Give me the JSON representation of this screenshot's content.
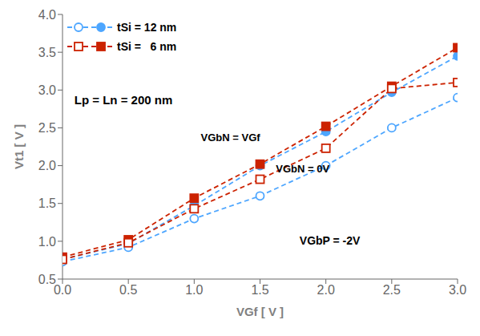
{
  "chart_data": {
    "type": "line",
    "x_label": "VGf [ V ]",
    "y_label": "Vt1 [ V ]",
    "x": [
      0.0,
      0.5,
      1.0,
      1.5,
      2.0,
      2.5,
      3.0
    ],
    "series": [
      {
        "name": "tSi = 12 nm",
        "color": "#4da6ff",
        "marker": "circle_filled",
        "line_style": "dashed",
        "values": [
          0.76,
          0.97,
          1.47,
          2.0,
          2.45,
          2.97,
          3.45
        ]
      },
      {
        "name": "tSi = 12 nm",
        "color": "#4da6ff",
        "marker": "circle_open",
        "line_style": "dashed",
        "values": [
          0.73,
          0.92,
          1.3,
          1.6,
          2.0,
          2.5,
          2.9
        ]
      },
      {
        "name": "tSi =   6 nm",
        "color": "#cc2200",
        "marker": "square_filled",
        "line_style": "dashed",
        "values": [
          0.79,
          1.02,
          1.57,
          2.02,
          2.52,
          3.05,
          3.56
        ]
      },
      {
        "name": "tSi =   6 nm",
        "color": "#cc2200",
        "marker": "square_open",
        "line_style": "dashed",
        "values": [
          0.76,
          0.98,
          1.43,
          1.82,
          2.23,
          3.02,
          3.1
        ]
      }
    ],
    "xlim": [
      0.0,
      3.0
    ],
    "ylim": [
      0.5,
      4.0
    ],
    "xticks": [
      {
        "value": 0,
        "label": "0.0"
      },
      {
        "value": 0.5,
        "label": "0.5"
      },
      {
        "value": 1,
        "label": "1.0"
      },
      {
        "value": 1.5,
        "label": "1.5"
      },
      {
        "value": 2,
        "label": "2.0"
      },
      {
        "value": 2.5,
        "label": "2.5"
      },
      {
        "value": 3,
        "label": "3.0"
      }
    ],
    "yticks": [
      {
        "value": 0.5,
        "label": "0.5"
      },
      {
        "value": 1,
        "label": "1.0"
      },
      {
        "value": 1.5,
        "label": "1.5"
      },
      {
        "value": 2,
        "label": "2.0"
      },
      {
        "value": 2.5,
        "label": "2.5"
      },
      {
        "value": 3,
        "label": "3.0"
      },
      {
        "value": 3.5,
        "label": "3.5"
      },
      {
        "value": 4,
        "label": "4.0"
      }
    ],
    "annotations": [
      "Lp = Ln = 200 nm",
      "VGbN = VGf",
      "VGbN = 0V",
      "VGbP = -2V"
    ],
    "legend": "upper left",
    "grid": false
  }
}
